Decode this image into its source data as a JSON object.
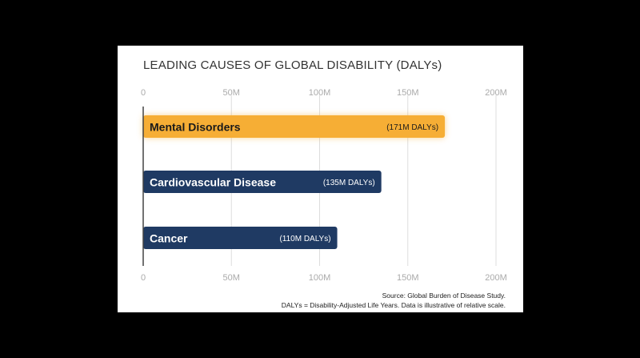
{
  "chart_data": {
    "type": "bar",
    "orientation": "horizontal",
    "title": "LEADING CAUSES OF GLOBAL DISABILITY (DALYs)",
    "categories": [
      "Mental Disorders",
      "Cardiovascular Disease",
      "Cancer"
    ],
    "values": [
      171,
      135,
      110
    ],
    "value_labels": [
      "(171M DALYs)",
      "(135M DALYs)",
      "(110M DALYs)"
    ],
    "x_ticks": [
      "0",
      "50M",
      "100M",
      "150M",
      "200M"
    ],
    "tick_values": [
      0,
      50,
      100,
      150,
      200
    ],
    "xlim": [
      0,
      200
    ],
    "grid": true,
    "highlight_index": 0,
    "colors": {
      "highlight": "#F6AE35",
      "default": "#1F3A63",
      "grid": "#dddddd",
      "axis": "#444444",
      "tick": "#aaaaaa"
    }
  },
  "source": "Source: Global Burden of Disease Study.",
  "footnote": "DALYs = Disability-Adjusted Life Years. Data is illustrative of relative scale."
}
